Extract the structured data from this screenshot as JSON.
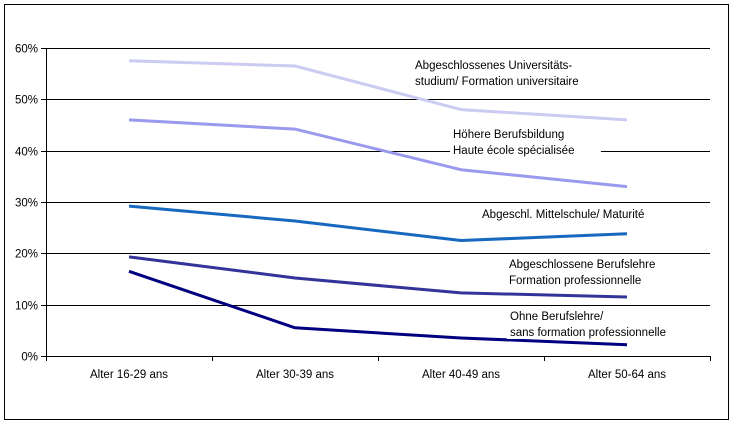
{
  "chart_data": {
    "type": "line",
    "categories": [
      "Alter 16-29 ans",
      "Alter 30-39 ans",
      "Alter 40-49 ans",
      "Alter 50-64 ans"
    ],
    "ylim": [
      0,
      60
    ],
    "y_ticks": [
      "0%",
      "10%",
      "20%",
      "30%",
      "40%",
      "50%",
      "60%"
    ],
    "y_tick_values": [
      0,
      10,
      20,
      30,
      40,
      50,
      60
    ],
    "grid": true,
    "series": [
      {
        "name": "Abgeschlossenes Universitäts-studium/ Formation universitaire",
        "label_lines": [
          "Abgeschlossenes Universitäts-",
          "studium/ Formation universitaire"
        ],
        "color": "#ccccf2",
        "values": [
          57.5,
          56.5,
          48.0,
          46.0
        ]
      },
      {
        "name": "Höhere Berufsbildung Haute école spécialisée",
        "label_lines": [
          "Höhere Berufsbildung",
          "Haute école spécialisée"
        ],
        "color": "#9999ee",
        "values": [
          46.0,
          44.2,
          36.3,
          33.0
        ]
      },
      {
        "name": "Abgeschl. Mittelschule/ Maturité",
        "label_lines": [
          "Abgeschl. Mittelschule/ Maturité"
        ],
        "color": "#1769c0",
        "values": [
          29.2,
          26.3,
          22.5,
          23.8
        ]
      },
      {
        "name": "Abgeschlossene Berufslehre Formation professionnelle",
        "label_lines": [
          "Abgeschlossene Berufslehre",
          "Formation professionnelle"
        ],
        "color": "#333399",
        "values": [
          19.3,
          15.2,
          12.3,
          11.5
        ]
      },
      {
        "name": "Ohne Berufslehre/ sans formation professionnelle",
        "label_lines": [
          "Ohne Berufslehre/",
          "sans formation professionnelle"
        ],
        "color": "#000080",
        "values": [
          16.5,
          5.5,
          3.5,
          2.2
        ]
      }
    ]
  }
}
